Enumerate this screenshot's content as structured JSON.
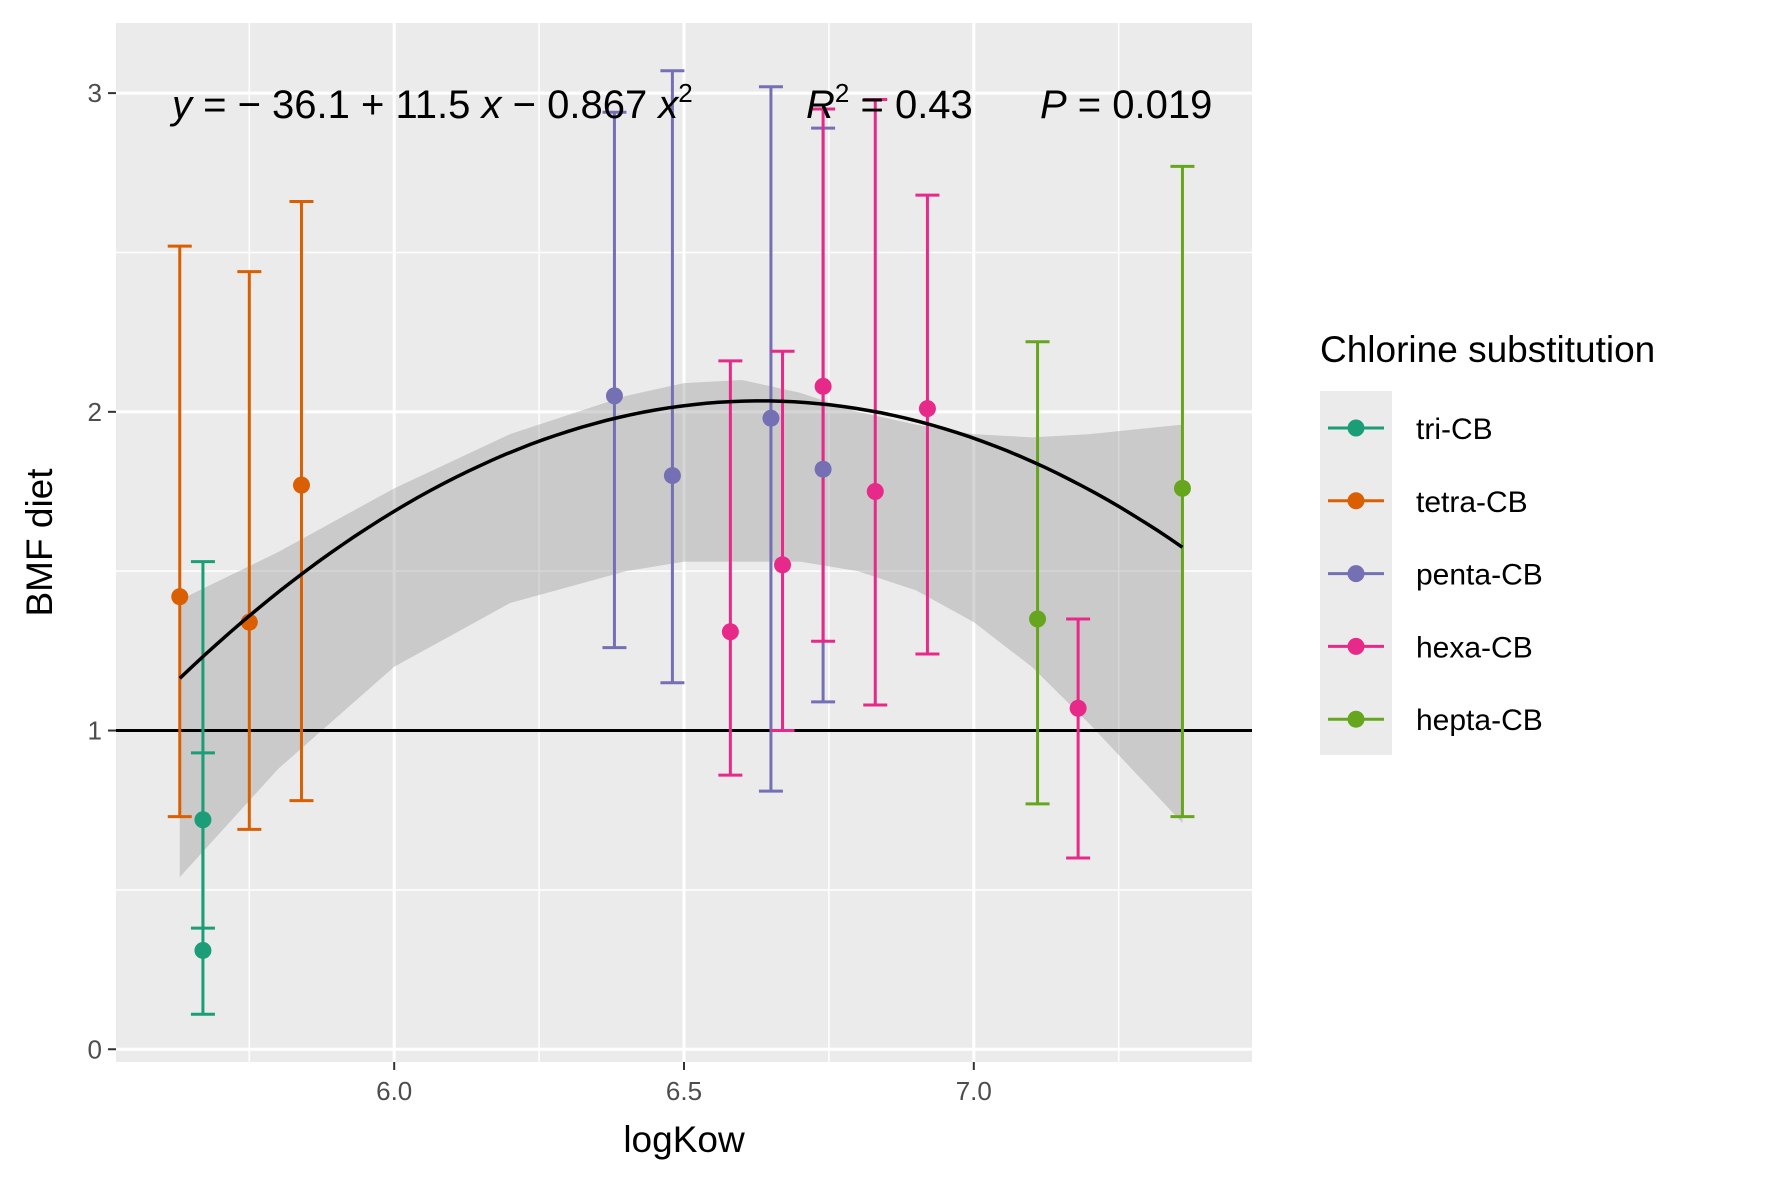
{
  "chart_data": {
    "type": "scatter",
    "xlabel": "logKow",
    "ylabel": "BMF diet",
    "xlim": [
      5.52,
      7.48
    ],
    "ylim": [
      -0.04,
      3.22
    ],
    "x_ticks": [
      6.0,
      6.5,
      7.0
    ],
    "x_tick_labels": [
      "6.0",
      "6.5",
      "7.0"
    ],
    "y_ticks": [
      0,
      1,
      2,
      3
    ],
    "y_tick_labels": [
      "0",
      "1",
      "2",
      "3"
    ],
    "grid": true,
    "legend_title": "Chlorine substitution",
    "legend_position": "right",
    "reference_line_y": 1,
    "fit": {
      "formula": "y = -36.1 + 11.5x - 0.867x^2",
      "intercept": -36.1,
      "b1": 11.5,
      "b2": -0.867,
      "x_range": [
        5.63,
        7.36
      ],
      "ci_upper": [
        [
          5.63,
          1.41
        ],
        [
          5.8,
          1.56
        ],
        [
          6.0,
          1.76
        ],
        [
          6.2,
          1.93
        ],
        [
          6.4,
          2.05
        ],
        [
          6.5,
          2.09
        ],
        [
          6.6,
          2.1
        ],
        [
          6.7,
          2.06
        ],
        [
          6.8,
          2.0
        ],
        [
          6.9,
          1.96
        ],
        [
          7.0,
          1.93
        ],
        [
          7.1,
          1.92
        ],
        [
          7.2,
          1.93
        ],
        [
          7.36,
          1.96
        ]
      ],
      "ci_lower": [
        [
          5.63,
          0.54
        ],
        [
          5.8,
          0.88
        ],
        [
          6.0,
          1.2
        ],
        [
          6.2,
          1.4
        ],
        [
          6.4,
          1.5
        ],
        [
          6.5,
          1.53
        ],
        [
          6.6,
          1.53
        ],
        [
          6.7,
          1.53
        ],
        [
          6.8,
          1.5
        ],
        [
          6.9,
          1.44
        ],
        [
          7.0,
          1.34
        ],
        [
          7.1,
          1.2
        ],
        [
          7.2,
          1.02
        ],
        [
          7.36,
          0.71
        ]
      ]
    },
    "annotation": {
      "equation_parts": [
        "y",
        " = − 36.1 + 11.5 ",
        "x",
        " − 0.867 ",
        "x",
        "2"
      ],
      "r2_parts": [
        "R",
        "2",
        " = 0.43"
      ],
      "p_parts": [
        "P",
        " = 0.019"
      ]
    },
    "series": [
      {
        "name": "tri-CB",
        "color": "#1B9E77",
        "points": [
          {
            "x": 5.67,
            "y": 0.72,
            "lo": 0.38,
            "hi": 1.53
          },
          {
            "x": 5.67,
            "y": 0.31,
            "lo": 0.11,
            "hi": 0.93
          }
        ]
      },
      {
        "name": "tetra-CB",
        "color": "#D95F02",
        "points": [
          {
            "x": 5.63,
            "y": 1.42,
            "lo": 0.73,
            "hi": 2.52
          },
          {
            "x": 5.75,
            "y": 1.34,
            "lo": 0.69,
            "hi": 2.44
          },
          {
            "x": 5.84,
            "y": 1.77,
            "lo": 0.78,
            "hi": 2.66
          }
        ]
      },
      {
        "name": "penta-CB",
        "color": "#7570B3",
        "points": [
          {
            "x": 6.38,
            "y": 2.05,
            "lo": 1.26,
            "hi": 2.94
          },
          {
            "x": 6.48,
            "y": 1.8,
            "lo": 1.15,
            "hi": 3.07
          },
          {
            "x": 6.65,
            "y": 1.98,
            "lo": 0.81,
            "hi": 3.02
          },
          {
            "x": 6.74,
            "y": 1.82,
            "lo": 1.09,
            "hi": 2.89
          }
        ]
      },
      {
        "name": "hexa-CB",
        "color": "#E7298A",
        "points": [
          {
            "x": 6.58,
            "y": 1.31,
            "lo": 0.86,
            "hi": 2.16
          },
          {
            "x": 6.67,
            "y": 1.52,
            "lo": 1.0,
            "hi": 2.19
          },
          {
            "x": 6.74,
            "y": 2.08,
            "lo": 1.28,
            "hi": 2.95
          },
          {
            "x": 6.83,
            "y": 1.75,
            "lo": 1.08,
            "hi": 2.98
          },
          {
            "x": 6.92,
            "y": 2.01,
            "lo": 1.24,
            "hi": 2.68
          },
          {
            "x": 7.18,
            "y": 1.07,
            "lo": 0.6,
            "hi": 1.35
          }
        ]
      },
      {
        "name": "hepta-CB",
        "color": "#66A61E",
        "points": [
          {
            "x": 7.11,
            "y": 1.35,
            "lo": 0.77,
            "hi": 2.22
          },
          {
            "x": 7.36,
            "y": 1.76,
            "lo": 0.73,
            "hi": 2.77
          }
        ]
      }
    ]
  }
}
